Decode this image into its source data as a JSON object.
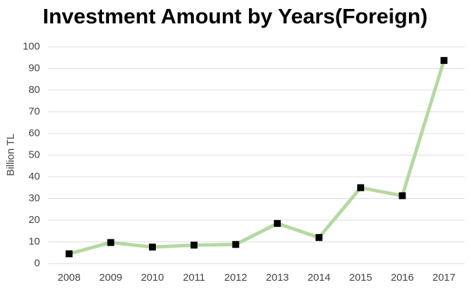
{
  "chart_data": {
    "type": "line",
    "title": "Investment Amount by Years(Foreign)",
    "y_label": "Billion TL",
    "categories": [
      "2008",
      "2009",
      "2010",
      "2011",
      "2012",
      "2013",
      "2014",
      "2015",
      "2016",
      "2017"
    ],
    "values": [
      4.5,
      9.7,
      7.6,
      8.5,
      8.8,
      18.5,
      12,
      35,
      31.3,
      93.7
    ],
    "color": "#b5d9a0",
    "marker_color": "#000000",
    "ylim": [
      0,
      100
    ],
    "yticks": [
      0,
      10,
      20,
      30,
      40,
      50,
      60,
      70,
      80,
      90,
      100
    ],
    "grid": true
  }
}
